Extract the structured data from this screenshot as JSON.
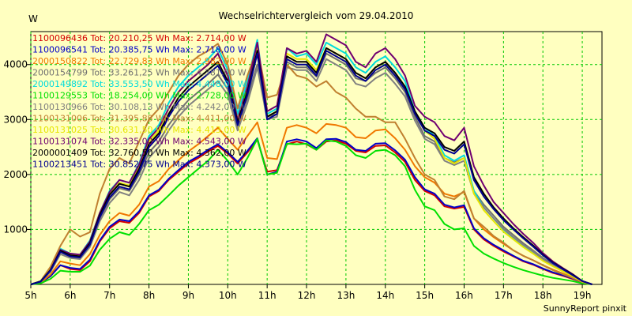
{
  "chart_data": {
    "type": "line",
    "title": "Wechselrichtervergleich vom 29.04.2010",
    "ylabel": "W",
    "footer": "SunnyReport pinxit",
    "x_ticks": [
      "5h",
      "6h",
      "7h",
      "8h",
      "9h",
      "10h",
      "11h",
      "12h",
      "13h",
      "14h",
      "15h",
      "16h",
      "17h",
      "18h",
      "19h"
    ],
    "y_ticks": [
      1000,
      2000,
      3000,
      4000
    ],
    "xlim": [
      5,
      19.5
    ],
    "ylim": [
      0,
      4600
    ],
    "grid": true,
    "legend_position": "top-left",
    "x": [
      5.0,
      5.25,
      5.5,
      5.75,
      6.0,
      6.25,
      6.5,
      6.75,
      7.0,
      7.25,
      7.5,
      7.75,
      8.0,
      8.25,
      8.5,
      8.75,
      9.0,
      9.25,
      9.5,
      9.75,
      10.0,
      10.25,
      10.5,
      10.75,
      11.0,
      11.25,
      11.5,
      11.75,
      12.0,
      12.25,
      12.5,
      12.75,
      13.0,
      13.25,
      13.5,
      13.75,
      14.0,
      14.25,
      14.5,
      14.75,
      15.0,
      15.25,
      15.5,
      15.75,
      16.0,
      16.25,
      16.5,
      16.75,
      17.0,
      17.25,
      17.5,
      17.75,
      18.0,
      18.25,
      18.5,
      18.75,
      19.0,
      19.25
    ],
    "series": [
      {
        "name": "1100096436 Tot: 20.210,25 Wh Max: 2.714,00 W",
        "color": "#d40000",
        "values": [
          0,
          30,
          150,
          350,
          280,
          260,
          420,
          780,
          1020,
          1150,
          1120,
          1300,
          1600,
          1700,
          1900,
          2050,
          2200,
          2300,
          2420,
          2520,
          2380,
          2200,
          2400,
          2630,
          2050,
          2080,
          2550,
          2600,
          2550,
          2450,
          2600,
          2620,
          2560,
          2430,
          2400,
          2520,
          2530,
          2400,
          2230,
          1900,
          1700,
          1620,
          1420,
          1380,
          1410,
          1000,
          820,
          700,
          600,
          510,
          420,
          360,
          280,
          210,
          160,
          100,
          40,
          0
        ]
      },
      {
        "name": "1100096541 Tot: 20.385,75 Wh Max: 2.718,00 W",
        "color": "#0000c8",
        "values": [
          0,
          30,
          150,
          350,
          300,
          280,
          450,
          800,
          1050,
          1180,
          1150,
          1330,
          1620,
          1720,
          1920,
          2080,
          2230,
          2330,
          2450,
          2550,
          2400,
          2230,
          2430,
          2660,
          2000,
          2050,
          2600,
          2640,
          2600,
          2480,
          2640,
          2650,
          2590,
          2450,
          2430,
          2560,
          2570,
          2440,
          2270,
          1950,
          1730,
          1650,
          1450,
          1400,
          1440,
          1020,
          840,
          720,
          620,
          520,
          430,
          370,
          290,
          220,
          170,
          110,
          40,
          0
        ]
      },
      {
        "name": "2000150822 Tot: 22.729,83 Wh Max: 2.982,00 W",
        "color": "#f07800",
        "values": [
          0,
          30,
          180,
          420,
          380,
          350,
          550,
          900,
          1150,
          1300,
          1250,
          1450,
          1780,
          1880,
          2100,
          2260,
          2420,
          2550,
          2700,
          2850,
          2650,
          2450,
          2700,
          2950,
          2300,
          2280,
          2850,
          2900,
          2850,
          2750,
          2920,
          2900,
          2850,
          2680,
          2660,
          2800,
          2820,
          2660,
          2450,
          2150,
          1950,
          1850,
          1650,
          1600,
          1680,
          1200,
          1000,
          860,
          740,
          620,
          520,
          440,
          350,
          270,
          200,
          130,
          50,
          0
        ]
      },
      {
        "name": "2000154799 Tot: 33.261,25 Wh Max: 4.381,00 W",
        "color": "#707070",
        "values": [
          0,
          50,
          250,
          600,
          500,
          480,
          700,
          1200,
          1550,
          1750,
          1700,
          2000,
          2400,
          2600,
          2900,
          3150,
          3350,
          3500,
          3650,
          3820,
          3550,
          2850,
          3400,
          4000,
          3050,
          3100,
          4050,
          3950,
          3950,
          3780,
          4200,
          4100,
          4000,
          3750,
          3700,
          3850,
          3950,
          3750,
          3500,
          3050,
          2700,
          2600,
          2300,
          2220,
          2300,
          1700,
          1450,
          1250,
          1050,
          900,
          750,
          620,
          480,
          370,
          270,
          170,
          60,
          0
        ]
      },
      {
        "name": "2000149892 Tot: 33.553,50 Wh Max: 4.448,00 W",
        "color": "#00dcdc",
        "values": [
          0,
          60,
          300,
          650,
          560,
          540,
          800,
          1300,
          1700,
          1900,
          1850,
          2200,
          2700,
          2900,
          3300,
          3600,
          3800,
          3950,
          4100,
          4300,
          3900,
          3100,
          3700,
          4450,
          3100,
          3200,
          4300,
          4150,
          4200,
          4000,
          4400,
          4300,
          4200,
          3950,
          3850,
          4050,
          4150,
          3950,
          3700,
          3150,
          2850,
          2700,
          2350,
          2250,
          2350,
          1700,
          1400,
          1200,
          1000,
          850,
          700,
          580,
          450,
          340,
          250,
          160,
          60,
          0
        ]
      },
      {
        "name": "1100129553 Tot: 18.254,00 Wh Max: 2.728,00 W",
        "color": "#00e000",
        "values": [
          0,
          20,
          100,
          250,
          230,
          230,
          340,
          630,
          830,
          950,
          900,
          1100,
          1350,
          1450,
          1620,
          1800,
          1950,
          2100,
          2250,
          2450,
          2250,
          2000,
          2300,
          2650,
          2000,
          2030,
          2560,
          2550,
          2560,
          2450,
          2620,
          2600,
          2520,
          2350,
          2300,
          2430,
          2450,
          2350,
          2150,
          1720,
          1420,
          1350,
          1100,
          1000,
          1020,
          700,
          560,
          470,
          390,
          320,
          260,
          210,
          160,
          120,
          90,
          60,
          20,
          0
        ]
      },
      {
        "name": "1100130966 Tot: 30.108,13 Wh Max: 4.242,00 W",
        "color": "#808080",
        "values": [
          0,
          50,
          230,
          550,
          480,
          460,
          680,
          1150,
          1480,
          1680,
          1620,
          1900,
          2300,
          2500,
          2800,
          3050,
          3250,
          3400,
          3550,
          3700,
          3450,
          2800,
          3300,
          3950,
          3000,
          3050,
          3950,
          3900,
          3900,
          3700,
          4100,
          4000,
          3900,
          3650,
          3600,
          3750,
          3850,
          3650,
          3420,
          2980,
          2650,
          2550,
          2250,
          2170,
          2250,
          1650,
          1400,
          1200,
          1010,
          860,
          720,
          600,
          460,
          350,
          260,
          160,
          60,
          0
        ]
      },
      {
        "name": "1100131006 Tot: 31.395,88 Wh Max: 4.411,00 W",
        "color": "#c08030",
        "values": [
          0,
          60,
          320,
          700,
          1000,
          870,
          950,
          1650,
          2100,
          2300,
          2200,
          2600,
          3000,
          3200,
          3500,
          3800,
          4000,
          4150,
          4250,
          4380,
          4000,
          3200,
          3800,
          4300,
          3400,
          3450,
          4000,
          3800,
          3750,
          3600,
          3700,
          3500,
          3400,
          3200,
          3050,
          3050,
          2950,
          2950,
          2650,
          2300,
          2000,
          1900,
          1600,
          1550,
          1700,
          1200,
          1050,
          880,
          760,
          620,
          520,
          440,
          350,
          260,
          190,
          120,
          40,
          0
        ]
      },
      {
        "name": "1100131025 Tot: 30.631,50 Wh Max: 4.413,00 W",
        "color": "#e6e600",
        "values": [
          0,
          55,
          280,
          620,
          540,
          520,
          770,
          1250,
          1640,
          1850,
          1800,
          2120,
          2600,
          2800,
          3200,
          3500,
          3700,
          3850,
          4000,
          4200,
          3800,
          3000,
          3600,
          4350,
          3050,
          3150,
          4200,
          4100,
          4100,
          3900,
          4300,
          4200,
          4100,
          3850,
          3750,
          3950,
          4050,
          3850,
          3600,
          3100,
          2800,
          2650,
          2300,
          2200,
          2300,
          1650,
          1350,
          1150,
          960,
          820,
          680,
          560,
          430,
          330,
          240,
          150,
          50,
          0
        ]
      },
      {
        "name": "1100131074 Tot: 32.335,00 Wh Max: 4.543,00 W",
        "color": "#700070",
        "values": [
          0,
          55,
          270,
          630,
          560,
          540,
          780,
          1300,
          1680,
          1900,
          1850,
          2180,
          2650,
          2850,
          3200,
          3500,
          3700,
          3850,
          4000,
          4200,
          3800,
          3000,
          3600,
          4400,
          3150,
          3250,
          4300,
          4200,
          4250,
          4050,
          4550,
          4450,
          4350,
          4050,
          3950,
          4200,
          4300,
          4100,
          3800,
          3250,
          3050,
          2950,
          2700,
          2620,
          2850,
          2150,
          1800,
          1500,
          1300,
          1100,
          920,
          760,
          570,
          420,
          300,
          190,
          60,
          0
        ]
      },
      {
        "name": "2000001409 Tot: 32.760,50 Wh Max: 4.362,00 W",
        "color": "#000000",
        "values": [
          0,
          55,
          260,
          610,
          530,
          510,
          750,
          1260,
          1630,
          1830,
          1780,
          2100,
          2550,
          2750,
          3100,
          3400,
          3600,
          3750,
          3900,
          4050,
          3700,
          2950,
          3500,
          4250,
          3050,
          3150,
          4150,
          4050,
          4050,
          3850,
          4300,
          4200,
          4100,
          3850,
          3750,
          3950,
          4050,
          3850,
          3600,
          3150,
          2850,
          2750,
          2500,
          2430,
          2600,
          1950,
          1650,
          1400,
          1200,
          1020,
          860,
          710,
          540,
          400,
          290,
          180,
          60,
          0
        ]
      },
      {
        "name": "1100213451 Tot: 30.852,75 Wh Max: 4.373,00 W",
        "color": "#000090",
        "values": [
          0,
          50,
          250,
          590,
          510,
          490,
          720,
          1220,
          1580,
          1780,
          1730,
          2050,
          2500,
          2700,
          3050,
          3330,
          3530,
          3680,
          3830,
          3980,
          3650,
          2900,
          3450,
          4200,
          3000,
          3100,
          4100,
          4000,
          4000,
          3800,
          4250,
          4150,
          4050,
          3800,
          3700,
          3900,
          4000,
          3800,
          3550,
          3100,
          2800,
          2700,
          2450,
          2380,
          2550,
          1900,
          1600,
          1370,
          1170,
          1000,
          840,
          690,
          530,
          390,
          280,
          170,
          60,
          0
        ]
      }
    ]
  }
}
